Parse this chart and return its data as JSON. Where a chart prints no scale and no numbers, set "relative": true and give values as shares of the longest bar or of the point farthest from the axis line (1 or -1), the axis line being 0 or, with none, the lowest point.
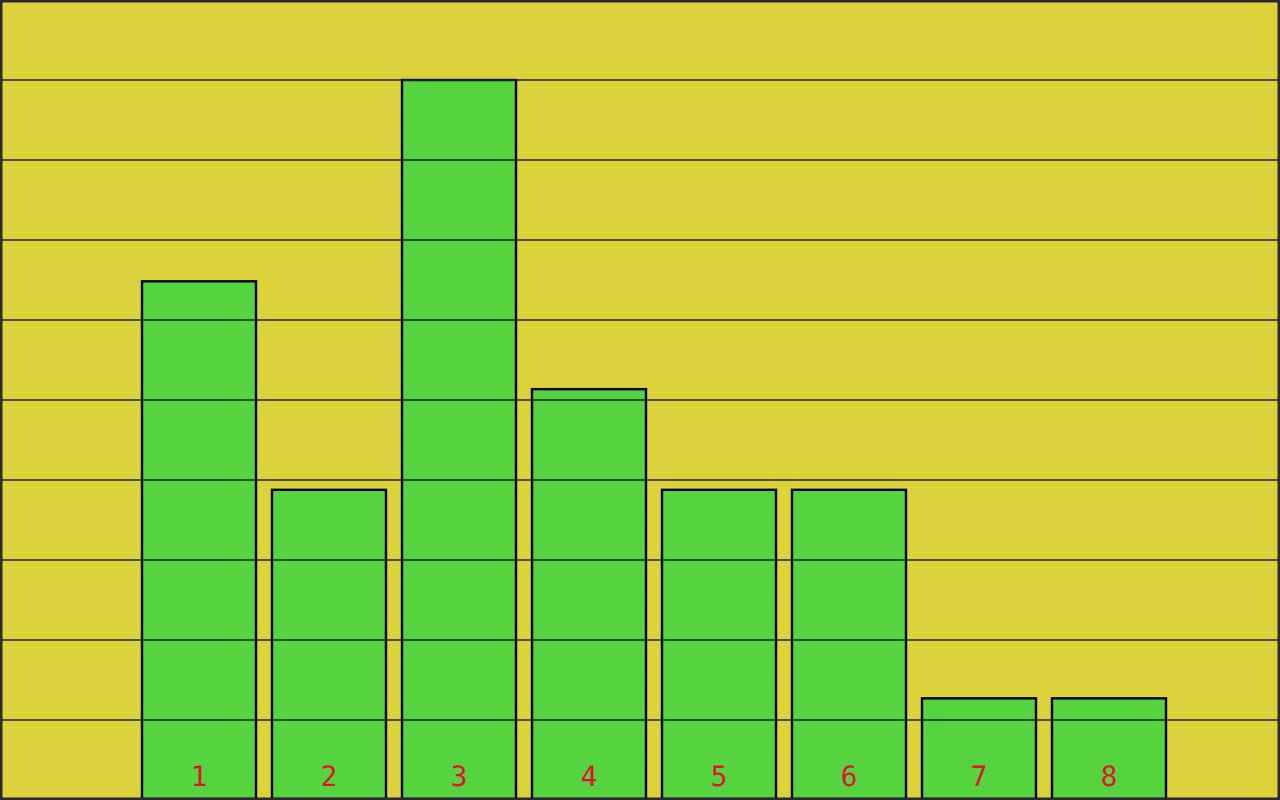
{
  "chart_data": {
    "type": "bar",
    "categories": [
      "1",
      "2",
      "3",
      "4",
      "5",
      "6",
      "7",
      "8"
    ],
    "values": [
      0.72,
      0.43,
      1,
      0.57,
      0.43,
      0.43,
      0.14,
      0.14
    ],
    "color": "#55d43f",
    "relative": true,
    "grid": "y"
  }
}
